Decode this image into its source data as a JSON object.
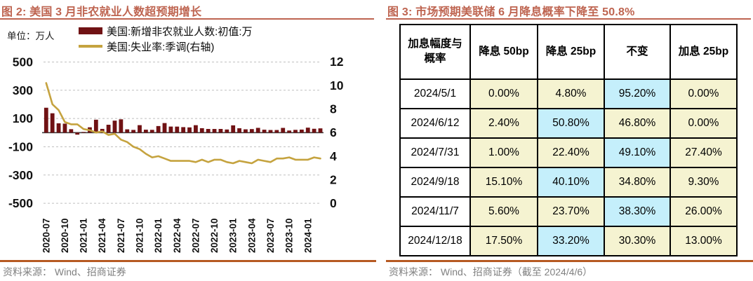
{
  "colors": {
    "title_accent": "#BE6450",
    "footer_rule": "#B65A22",
    "bar": "#701214",
    "line": "#C5A33F",
    "grid": "#BFBFBF",
    "zero_axis": "#3F3F3F",
    "axis_text": "#111111",
    "source_text": "#808080",
    "cell_yellow": "#F5F3D1",
    "cell_cyan": "#C5EFFB"
  },
  "left_panel": {
    "title": "图 2:  美国 3 月非农就业人数超预期增长",
    "unit_label": "单位：万人",
    "legend": [
      {
        "label": "美国:新增非农就业人数:初值:万"
      },
      {
        "label": "美国:失业率:季调(右轴)"
      }
    ],
    "source": "资料来源：  Wind、招商证券"
  },
  "chart_data": {
    "type": "bar",
    "title": "美国 3 月非农就业人数超预期增长",
    "x": [
      "2020-07",
      "2020-08",
      "2020-09",
      "2020-10",
      "2020-11",
      "2020-12",
      "2021-01",
      "2021-02",
      "2021-03",
      "2021-04",
      "2021-05",
      "2021-06",
      "2021-07",
      "2021-08",
      "2021-09",
      "2021-10",
      "2021-11",
      "2021-12",
      "2022-01",
      "2022-02",
      "2022-03",
      "2022-04",
      "2022-05",
      "2022-06",
      "2022-07",
      "2022-08",
      "2022-09",
      "2022-10",
      "2022-11",
      "2022-12",
      "2023-01",
      "2023-02",
      "2023-03",
      "2023-04",
      "2023-05",
      "2023-06",
      "2023-07",
      "2023-08",
      "2023-09",
      "2023-10",
      "2023-11",
      "2023-12",
      "2024-01",
      "2024-02",
      "2024-03"
    ],
    "x_tick_labels": [
      "2020-07",
      "2020-10",
      "2021-01",
      "2021-04",
      "2021-07",
      "2021-10",
      "2022-01",
      "2022-04",
      "2022-07",
      "2022-10",
      "2023-01",
      "2023-04",
      "2023-07",
      "2023-10",
      "2024-01"
    ],
    "series": [
      {
        "name": "美国:新增非农就业人数:初值:万",
        "type": "bar",
        "axis": "left",
        "values": [
          176.3,
          137.1,
          66.1,
          63.8,
          24.5,
          -14,
          4.9,
          37.9,
          91.6,
          26.6,
          55.9,
          85,
          94.3,
          23.5,
          19.4,
          53.1,
          21,
          19.9,
          46.7,
          67.8,
          43.1,
          42.8,
          39,
          37.2,
          52.8,
          31.5,
          26.3,
          26.1,
          26.3,
          22.3,
          51.7,
          31.1,
          23.6,
          25.3,
          33.9,
          20.9,
          18.7,
          18.7,
          33.6,
          15,
          19.9,
          21.6,
          35.3,
          27.5,
          30.3
        ]
      },
      {
        "name": "美国:失业率:季调(右轴)",
        "type": "line",
        "axis": "right",
        "values": [
          10.2,
          8.4,
          7.9,
          6.9,
          6.7,
          6.7,
          6.3,
          6.2,
          6,
          6.1,
          5.8,
          5.9,
          5.4,
          5.2,
          4.8,
          4.6,
          4.2,
          3.9,
          4,
          3.8,
          3.6,
          3.6,
          3.6,
          3.6,
          3.5,
          3.7,
          3.5,
          3.7,
          3.7,
          3.5,
          3.4,
          3.6,
          3.5,
          3.4,
          3.7,
          3.6,
          3.5,
          3.8,
          3.8,
          3.9,
          3.7,
          3.7,
          3.7,
          3.9,
          3.8
        ]
      }
    ],
    "left_axis": {
      "ticks": [
        500,
        300,
        100,
        -100,
        -300,
        -500
      ],
      "range": [
        -500,
        500
      ],
      "unit": "万人"
    },
    "right_axis": {
      "ticks": [
        12,
        10,
        8,
        6,
        4,
        2,
        0
      ],
      "range": [
        0,
        12
      ]
    },
    "grid": true,
    "legend_position": "top"
  },
  "right_panel": {
    "title": "图 3:  市场预期美联储 6 月降息概率下降至 50.8%",
    "table": {
      "header": [
        "加息幅度与概率",
        "降息 50bp",
        "降息 25bp",
        "不变",
        "加息 25bp"
      ],
      "rows": [
        {
          "date": "2024/5/1",
          "values": [
            "0.00%",
            "4.80%",
            "95.20%",
            "0.00%"
          ],
          "highlight": 2
        },
        {
          "date": "2024/6/12",
          "values": [
            "2.40%",
            "50.80%",
            "46.80%",
            "0.00%"
          ],
          "highlight": 1
        },
        {
          "date": "2024/7/31",
          "values": [
            "1.00%",
            "22.40%",
            "49.10%",
            "27.40%"
          ],
          "highlight": 2
        },
        {
          "date": "2024/9/18",
          "values": [
            "15.10%",
            "40.10%",
            "34.80%",
            "9.30%"
          ],
          "highlight": 1
        },
        {
          "date": "2024/11/7",
          "values": [
            "5.60%",
            "23.70%",
            "38.30%",
            "26.00%"
          ],
          "highlight": 2
        },
        {
          "date": "2024/12/18",
          "values": [
            "17.50%",
            "33.20%",
            "30.30%",
            "13.00%"
          ],
          "highlight": 1
        }
      ]
    },
    "source": "资料来源：  Wind、招商证券（截至 2024/4/6）"
  }
}
